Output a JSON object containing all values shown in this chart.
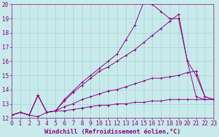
{
  "xlabel": "Windchill (Refroidissement éolien,°C)",
  "xlim": [
    0,
    23
  ],
  "ylim": [
    12,
    20
  ],
  "xticks": [
    0,
    1,
    2,
    3,
    4,
    5,
    6,
    7,
    8,
    9,
    10,
    11,
    12,
    13,
    14,
    15,
    16,
    17,
    18,
    19,
    20,
    21,
    22,
    23
  ],
  "yticks": [
    12,
    13,
    14,
    15,
    16,
    17,
    18,
    19,
    20
  ],
  "bg_color": "#c8eaea",
  "line_color": "#880088",
  "grid_color": "#aacfcf",
  "lines_y": [
    [
      12.2,
      12.4,
      12.2,
      12.1,
      12.4,
      12.5,
      12.5,
      12.6,
      12.7,
      12.8,
      12.9,
      12.9,
      13.0,
      13.0,
      13.1,
      13.1,
      13.2,
      13.2,
      13.3,
      13.3,
      13.3,
      13.3,
      13.3,
      13.3
    ],
    [
      12.2,
      12.4,
      12.2,
      13.6,
      12.4,
      12.5,
      12.8,
      13.0,
      13.3,
      13.5,
      13.7,
      13.9,
      14.0,
      14.2,
      14.4,
      14.6,
      14.8,
      14.8,
      14.9,
      15.0,
      15.2,
      15.3,
      13.5,
      13.3
    ],
    [
      12.2,
      12.4,
      12.2,
      13.6,
      12.4,
      12.5,
      13.2,
      13.8,
      14.3,
      14.8,
      15.3,
      15.6,
      16.0,
      16.4,
      16.8,
      17.3,
      17.8,
      18.3,
      18.8,
      19.3,
      16.0,
      15.0,
      13.5,
      13.3
    ],
    [
      12.2,
      12.4,
      12.2,
      13.6,
      12.4,
      12.5,
      13.3,
      13.9,
      14.5,
      15.0,
      15.5,
      16.0,
      16.5,
      17.5,
      18.5,
      20.1,
      20.0,
      19.5,
      19.0,
      19.0,
      16.0,
      13.5,
      13.3,
      13.3
    ]
  ],
  "tick_fontsize": 6,
  "label_fontsize": 6.5,
  "tick_color": "#880088",
  "label_color": "#880088"
}
